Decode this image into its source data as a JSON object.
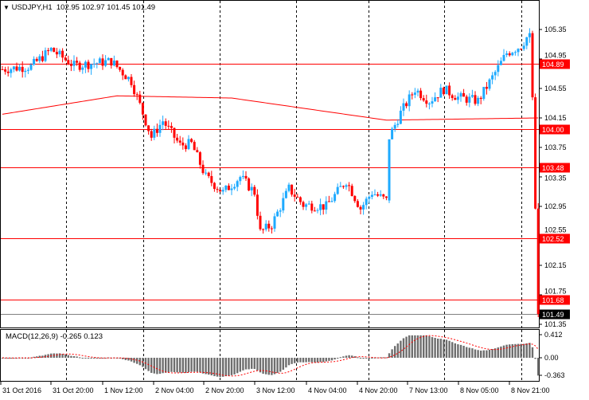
{
  "header": {
    "menu_icon": "triangle-down-icon",
    "symbol": "USDJPY,H1",
    "open": "102.95",
    "high": "102.97",
    "low": "101.45",
    "close": "101.49"
  },
  "colors": {
    "bull": "#1eaaff",
    "bear": "#ff0000",
    "level": "#ff0000",
    "ma": "#ff0000",
    "hist": "#6e6e6e",
    "signal": "#ff0000",
    "bid": "#808080"
  },
  "price_axis": {
    "ticks": [
      "105.35",
      "104.95",
      "104.55",
      "104.15",
      "103.75",
      "103.35",
      "102.95",
      "102.55",
      "102.15",
      "101.75",
      "101.35"
    ],
    "min": 101.35,
    "max": 105.35
  },
  "levels": [
    {
      "label": "104.89",
      "price": 104.89
    },
    {
      "label": "104.00",
      "price": 104.0
    },
    {
      "label": "103.48",
      "price": 103.48
    },
    {
      "label": "102.52",
      "price": 102.52
    },
    {
      "label": "101.68",
      "price": 101.68
    }
  ],
  "bid": {
    "label": "101.49",
    "price": 101.49
  },
  "macd": {
    "label": "MACD(12,26,9) -0.265 0.123",
    "ticks": [
      "0.412",
      "0.00",
      "-0.363"
    ],
    "max": 0.412,
    "min": -0.363
  },
  "time_axis": [
    "31 Oct 2016",
    "31 Oct 20:00",
    "1 Nov 12:00",
    "2 Nov 04:00",
    "2 Nov 20:00",
    "3 Nov 12:00",
    "4 Nov 04:00",
    "4 Nov 20:00",
    "7 Nov 13:00",
    "8 Nov 05:00",
    "8 Nov 21:00"
  ],
  "chart_data": {
    "type": "candlestick",
    "timeframe": "H1",
    "close_path": [
      [
        0,
        104.81
      ],
      [
        10,
        104.85
      ],
      [
        17,
        105.08
      ],
      [
        25,
        104.86
      ],
      [
        38,
        104.92
      ],
      [
        45,
        104.65
      ],
      [
        52,
        103.89
      ],
      [
        56,
        104.11
      ],
      [
        62,
        103.78
      ],
      [
        66,
        103.8
      ],
      [
        71,
        103.35
      ],
      [
        77,
        103.14
      ],
      [
        83,
        103.35
      ],
      [
        88,
        103.14
      ],
      [
        90,
        102.6
      ],
      [
        94,
        102.7
      ],
      [
        100,
        103.19
      ],
      [
        105,
        102.97
      ],
      [
        113,
        102.95
      ],
      [
        120,
        103.3
      ],
      [
        125,
        102.92
      ],
      [
        129,
        103.14
      ],
      [
        134,
        103.03
      ],
      [
        135,
        103.89
      ],
      [
        139,
        104.22
      ],
      [
        144,
        104.54
      ],
      [
        149,
        104.38
      ],
      [
        154,
        104.54
      ],
      [
        159,
        104.43
      ],
      [
        166,
        104.38
      ],
      [
        171,
        104.7
      ],
      [
        176,
        105.03
      ],
      [
        181,
        105.13
      ],
      [
        184,
        105.3
      ],
      [
        185,
        104.43
      ],
      [
        186,
        102.92
      ],
      [
        187,
        101.49
      ]
    ],
    "ma_path": [
      [
        0,
        104.2
      ],
      [
        40,
        104.45
      ],
      [
        80,
        104.42
      ],
      [
        134,
        104.12
      ],
      [
        187,
        104.15
      ]
    ]
  }
}
